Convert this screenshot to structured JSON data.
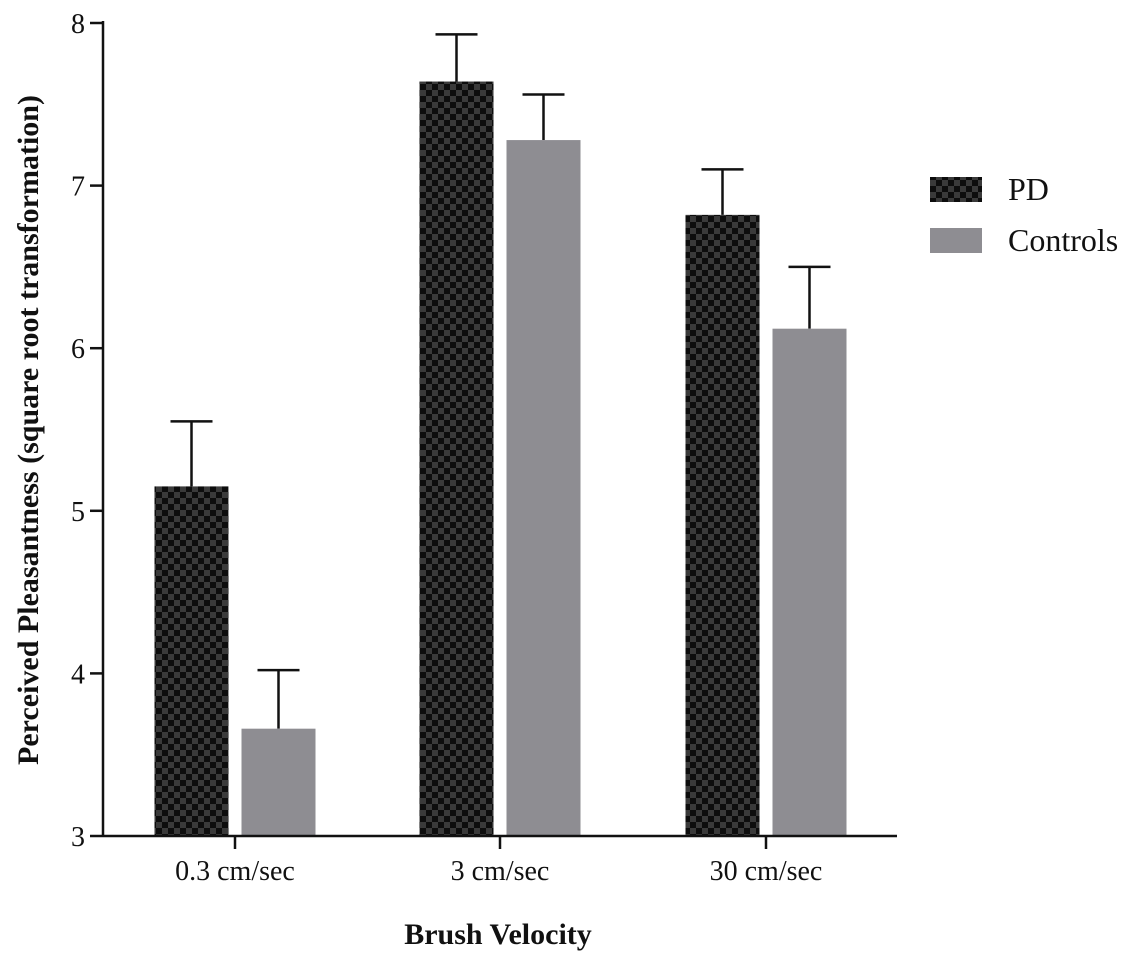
{
  "chart_data": {
    "type": "bar",
    "xlabel": "Brush Velocity",
    "ylabel": "Perceived Pleasantness (square root transformation)",
    "categories": [
      "0.3 cm/sec",
      "3 cm/sec",
      "30 cm/sec"
    ],
    "ylim": [
      3,
      8
    ],
    "yticks": [
      "3",
      "4",
      "5",
      "6",
      "7",
      "8"
    ],
    "series": [
      {
        "name": "PD",
        "values": [
          5.15,
          7.64,
          6.82
        ],
        "error": [
          0.4,
          0.29,
          0.28
        ],
        "color": "#1a1a1a",
        "pattern": "checkerboard"
      },
      {
        "name": "Controls",
        "values": [
          3.66,
          7.28,
          6.12
        ],
        "error": [
          0.36,
          0.28,
          0.38
        ],
        "color": "#8e8d92"
      }
    ],
    "legend_position": "right",
    "grid": false
  }
}
